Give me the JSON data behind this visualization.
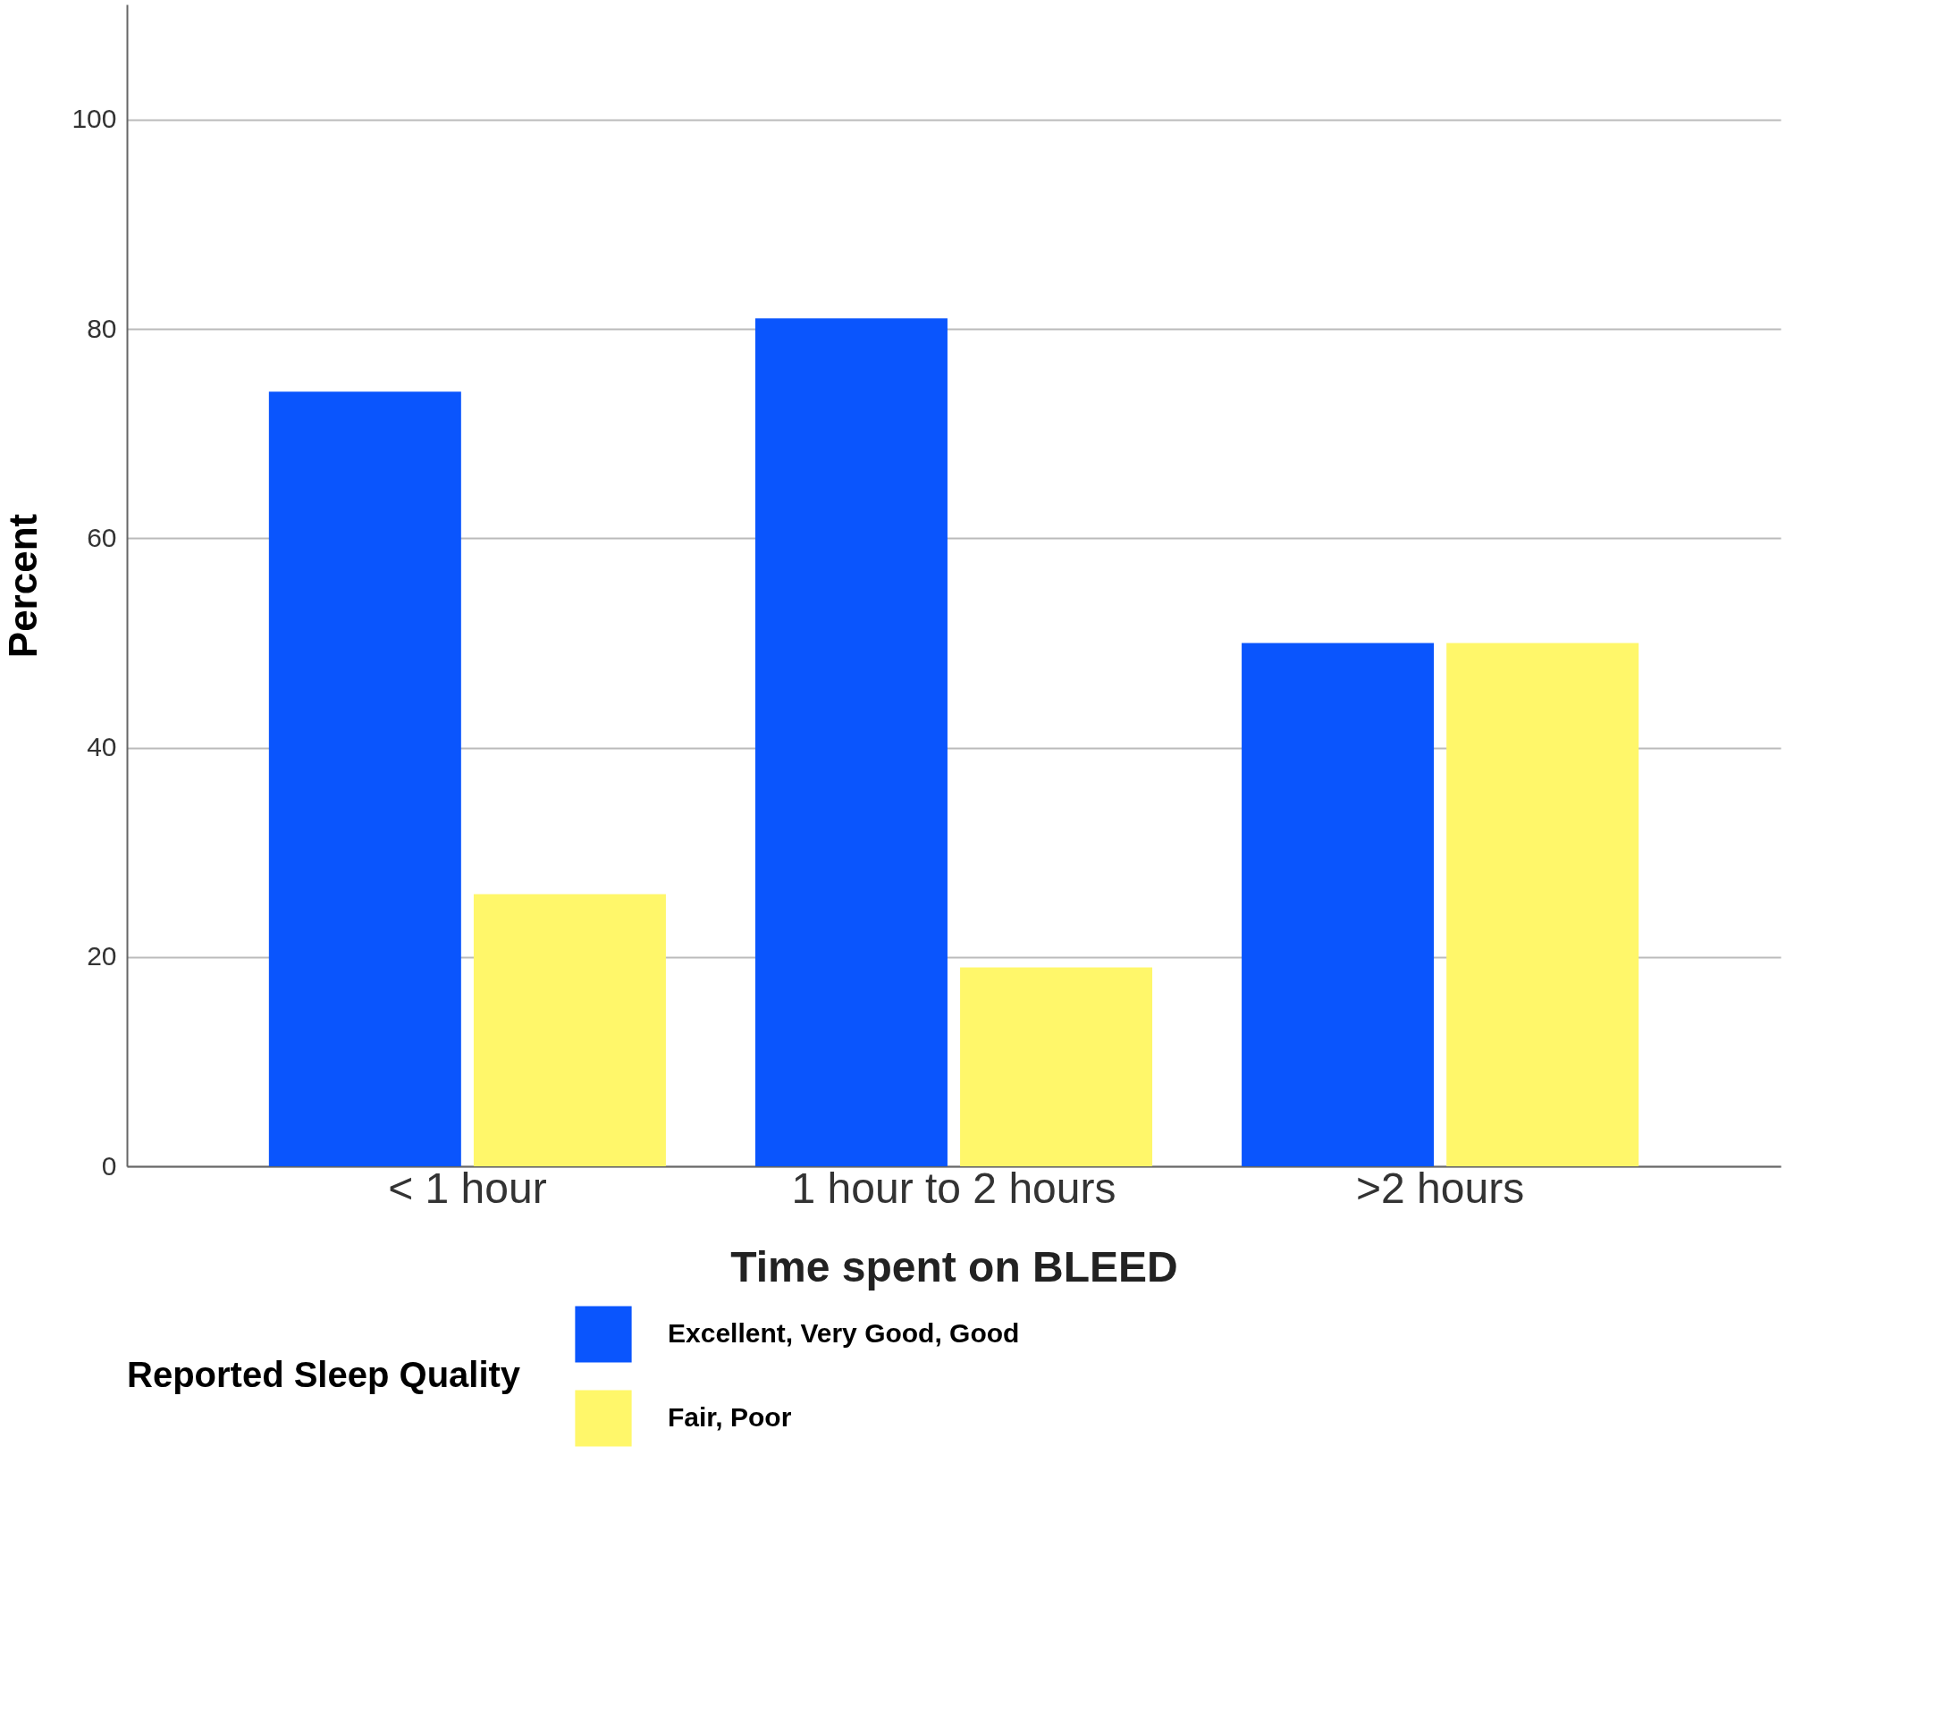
{
  "chart_data": {
    "type": "bar",
    "xlabel": "Time spent on BLEED",
    "ylabel": "Percent",
    "legend_title": "Reported Sleep Quality",
    "categories": [
      "< 1 hour",
      "1 hour to 2 hours",
      ">2 hours"
    ],
    "series": [
      {
        "name": "Excellent, Very Good, Good",
        "color": "#0a55fd",
        "values": [
          74,
          81,
          50
        ]
      },
      {
        "name": "Fair, Poor",
        "color": "#fff76a",
        "values": [
          26,
          19,
          50
        ]
      }
    ],
    "ylim": [
      0,
      111
    ],
    "yticks": [
      0,
      20,
      40,
      60,
      80,
      100
    ],
    "grid": "y",
    "legend": "bottom"
  }
}
